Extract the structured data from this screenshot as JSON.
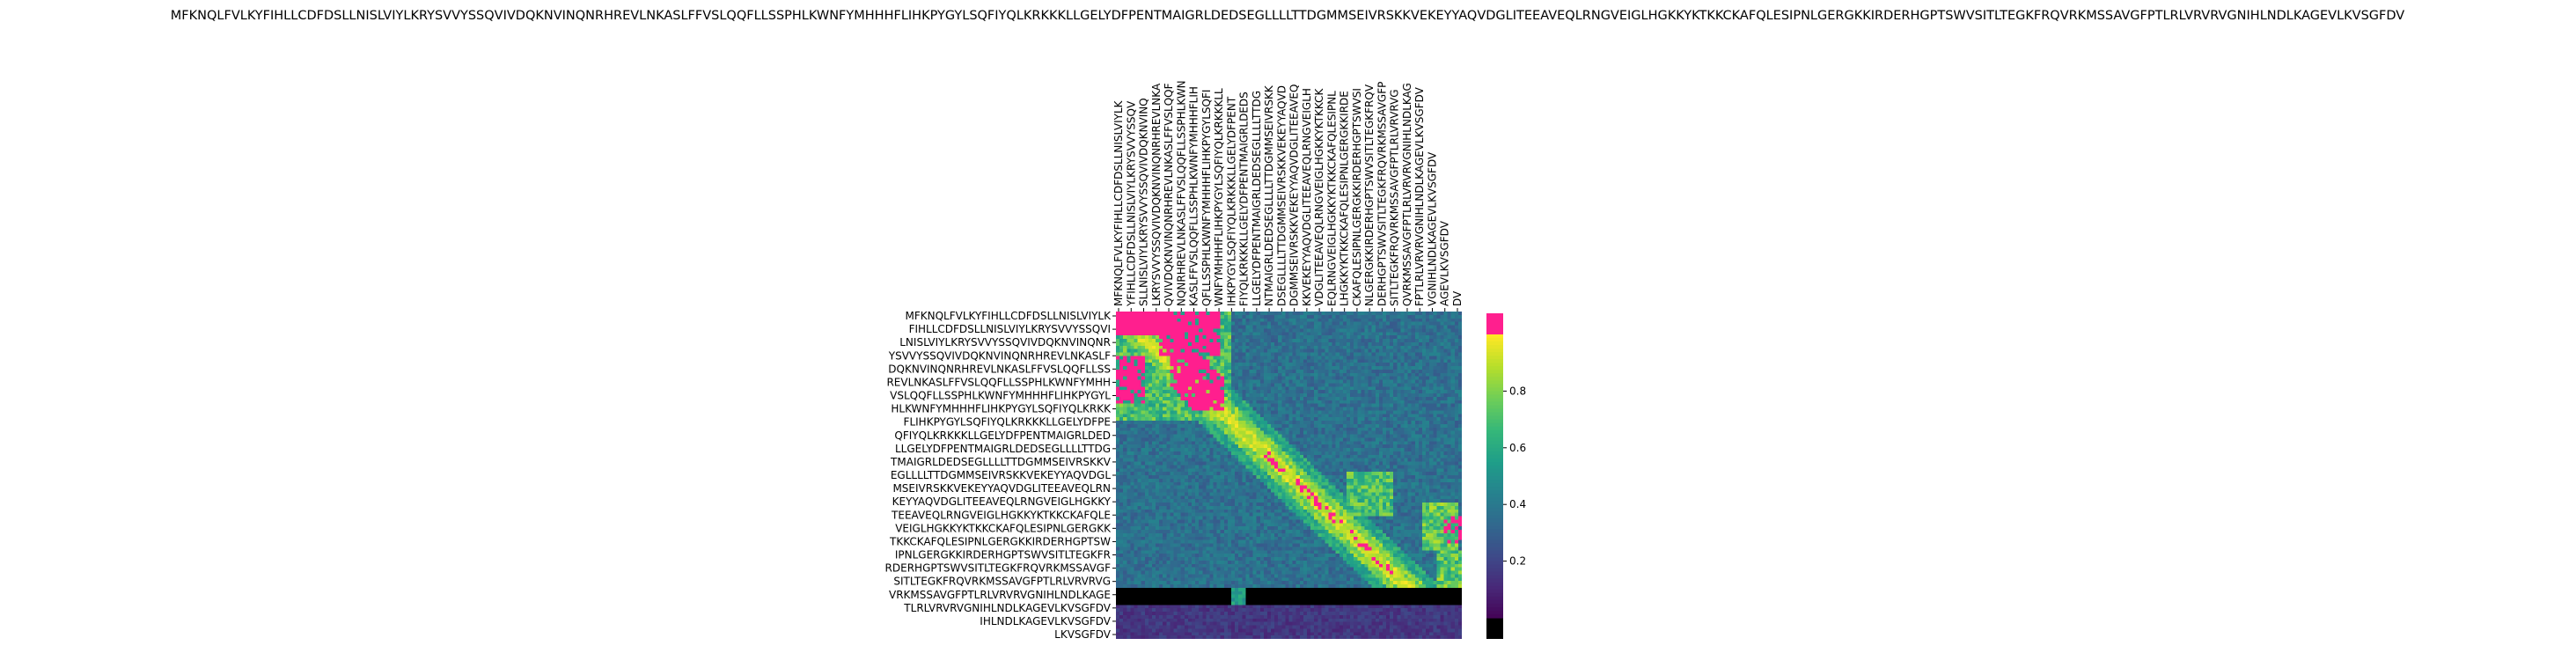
{
  "chart_data": {
    "type": "heatmap",
    "title": "MFKNQLFVLKYFIHLLCDFDSLLNISLVIYLKRYSVVYSSQVIVDQKNVINQNRHREVLNKASLFFVSLQQFLLSSPHLKWNFYMHHHFLIHKPYGYLSQFIYQLKRKKKLLGELYDFPENTMAIGRLDEDSEGLLLLTTDGMMSEIVRSKKVEKEYYAQVDGLITEEAVEQLRNGVEIGLHGKKYKTKKCKAFQLESIPNLGERGKKIRDERHGPTSWVSITLTEGKFRQVRKMSSAVGFPTLRLVRVRVGNIHLNDLKAGEVLKVSGFDV",
    "row_labels": [
      "MFKNQLFVLKYFIHLLCDFDSLLNISLVIYLK",
      "FIHLLCDFDSLLNISLVIYLKRYSVVYSSQVI",
      "LNISLVIYLKRYSVVYSSQVIVDQKNVINQNR",
      "YSVVYSSQVIVDQKNVINQNRHREVLNKASLF",
      "DQKNVINQNRHREVLNKASLFFVSLQQFLLSS",
      "REVLNKASLFFVSLQQFLLSSPHLKWNFYMHH",
      "VSLQQFLLSSPHLKWNFYMHHHFLIHKPYGYL",
      "HLKWNFYMHHHFLIHKPYGYLSQFIYQLKRKK",
      "FLIHKPYGYLSQFIYQLKRKKKLLGELYDFPE",
      "QFIYQLKRKKKLLGELYDFPENTMAIGRLDED",
      "LLGELYDFPENTMAIGRLDEDSEGLLLLTTDG",
      "TMAIGRLDEDSEGLLLLTTDGMMSEIVRSKKV",
      "EGLLLLTTDGMMSEIVRSKKVEKEYYAQVDGL",
      "MSEIVRSKKVEKEYYAQVDGLITEEAVEQLRN",
      "KEYYAQVDGLITEEAVEQLRNGVEIGLHGKKY",
      "TEEAVEQLRNGVEIGLHGKKYKTKKCKAFQLE",
      "VEIGLHGKKYKTKKCKAFQLESIPNLGERGKK",
      "TKKCKAFQLESIPNLGERGKKIRDERHGPTSW",
      "IPNLGERGKKIRDERHGPTSWVSITLTEGKFR",
      "RDERHGPTSWVSITLTEGKFRQVRKMSSAVGF",
      "SITLTEGKFRQVRKMSSAVGFPTLRLVRVRVG",
      "VRKMSSAVGFPTLRLVRVRVGNIHLNDLKAGE",
      "TLRLVRVRVGNIHLNDLKAGEVLKVSGFDV",
      "IHLNDLKAGEVLKVSGFDV",
      "LKVSGFDV"
    ],
    "col_labels": [
      "MFKNQLFVLKYFIHLLCDFDSLLNISLVIYLK",
      "YFIHLLCDFDSLLNISLVIYLKRYSVVYSSQV",
      "SLLNISLVIYLKRYSVVYSSQVIVDQKNVINQ",
      "LKRYSVVYSSQVIVDQKNVINQNRHREVLNKA",
      "QVIVDQKNVINQNRHREVLNKASLFFVSLQQF",
      "NQNRHREVLNKASLFFVSLQQFLLSSPHLKWN",
      "KASLFFVSLQQFLLSSPHLKWNFYMHHHFLIH",
      "QFLLSSPHLKWNFYMHHHFLIHKPYGYLSQFI",
      "WNFYMHHHFLIHKPYGYLSQFIYQLKRKKKLL",
      "IHKPYGYLSQFIYQLKRKKKLLGELYDFPENT",
      "FIYQLKRKKKLLGELYDFPENTMAIGRLDEDS",
      "LLGELYDFPENTMAIGRLDEDSEGLLLLTTDG",
      "NTMAIGRLDEDSEGLLLLTTDGMMSEIVRSKK",
      "DSEGLLLLTTDGMMSEIVRSKKVEKEYYAQVD",
      "DGMMSEIVRSKKVEKEYYAQVDGLITEEAVEQ",
      "KKVEKEYYAQVDGLITEEAVEQLRNGVEIGLH",
      "VDGLITEEAVEQLRNGVEIGLHGKKYKTKKCK",
      "EQLRNGVEIGLHGKKYKTKKCKAFQLESIPNL",
      "LHGKKYKTKKCKAFQLESIPNLGERGKKIRDE",
      "CKAFQLESIPNLGERGKKIRDERHGPTSWVSI",
      "NLGERGKKIRDERHGPTSWVSITLTEGKFRQV",
      "DERHGPTSWVSITLTEGKFRQVRKMSSAVGFP",
      "SITLTEGKFRQVRKMSSAVGFPTLRLVRVRVG",
      "QVRKMSSAVGFPTLRLVRVRVGNIHLNDLKAG",
      "FPTLRLVRVRVGNIHLNDLKAGEVLKVSGFDV",
      "VGNIHLNDLKAGEVLKVSGFDV",
      "AGEVLKVSGFDV",
      "DV"
    ],
    "n_positions": 199,
    "value_range": [
      0,
      1
    ],
    "colormap": "viridis",
    "over_color": "#ff1f8e",
    "under_color": "#000000",
    "colorbar_ticks": [
      "0.2",
      "0.4",
      "0.6",
      "0.8"
    ],
    "grid": false,
    "legend": "colorbar-right"
  }
}
